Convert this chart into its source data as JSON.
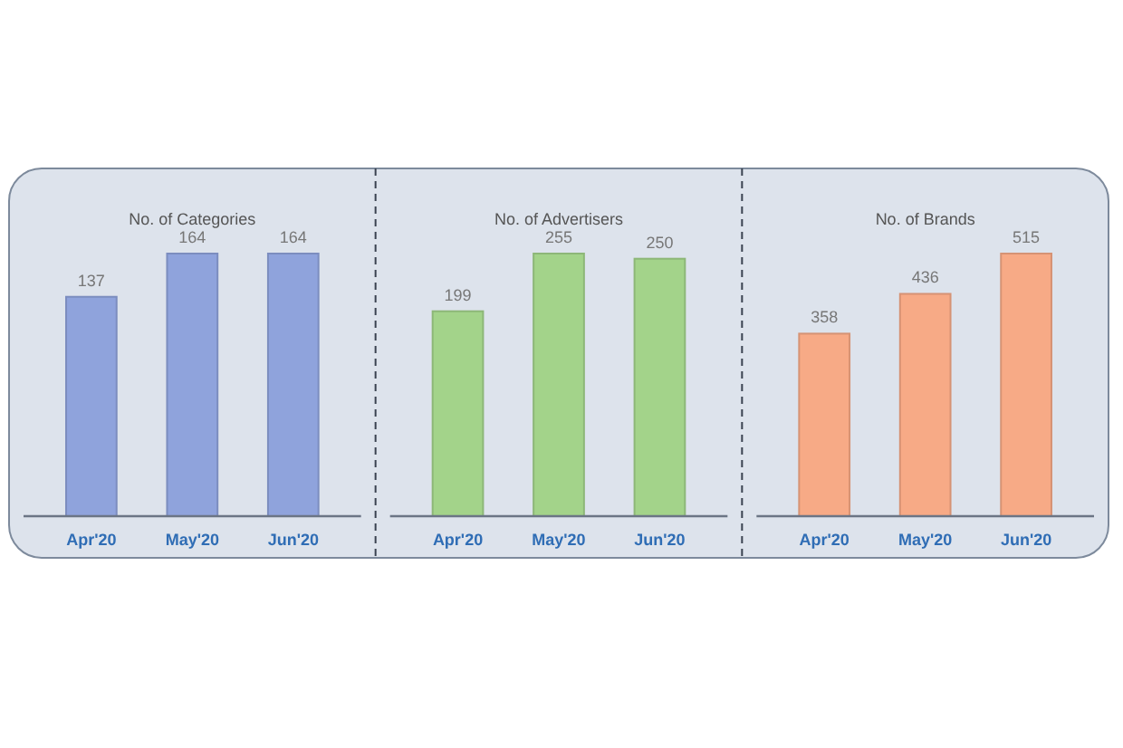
{
  "chart_data": [
    {
      "type": "bar",
      "title": "No. of Categories",
      "categories": [
        "Apr'20",
        "May'20",
        "Jun'20"
      ],
      "values": [
        137,
        164,
        164
      ],
      "color": "#8fa3dc",
      "data_labels": true,
      "tick_labels": "x"
    },
    {
      "type": "bar",
      "title": "No. of Advertisers",
      "categories": [
        "Apr'20",
        "May'20",
        "Jun'20"
      ],
      "values": [
        199,
        255,
        250
      ],
      "color": "#a3d38a",
      "data_labels": true,
      "tick_labels": "x"
    },
    {
      "type": "bar",
      "title": "No. of Brands",
      "categories": [
        "Apr'20",
        "May'20",
        "Jun'20"
      ],
      "values": [
        358,
        436,
        515
      ],
      "color": "#f7aa86",
      "data_labels": true,
      "tick_labels": "x"
    }
  ]
}
